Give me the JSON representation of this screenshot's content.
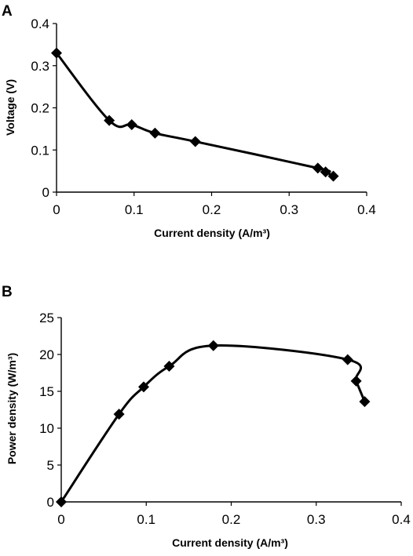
{
  "chart_data": [
    {
      "id": "A",
      "type": "line",
      "panel_label": "A",
      "xlabel": "Current density (A/m³)",
      "ylabel": "Voltage (V)",
      "xlim": [
        0,
        0.4
      ],
      "ylim": [
        0,
        0.4
      ],
      "xticks": [
        "0",
        "0.1",
        "0.2",
        "0.3",
        "0.4"
      ],
      "yticks": [
        "0",
        "0.1",
        "0.2",
        "0.3",
        "0.4"
      ],
      "grid": false,
      "marker": "diamond",
      "series": [
        {
          "x": [
            0,
            0.068,
            0.097,
            0.127,
            0.179,
            0.337,
            0.347,
            0.357
          ],
          "y": [
            0.33,
            0.17,
            0.16,
            0.14,
            0.12,
            0.057,
            0.048,
            0.038
          ]
        }
      ]
    },
    {
      "id": "B",
      "type": "line",
      "panel_label": "B",
      "xlabel": "Current density (A/m³)",
      "ylabel": "Power density (W/m³)",
      "xlim": [
        0,
        0.4
      ],
      "ylim": [
        0,
        25
      ],
      "xticks": [
        "0",
        "0.1",
        "0.2",
        "0.3",
        "0.4"
      ],
      "yticks": [
        "0",
        "5",
        "10",
        "15",
        "20",
        "25"
      ],
      "grid": false,
      "marker": "diamond",
      "series": [
        {
          "x": [
            0,
            0.068,
            0.097,
            0.127,
            0.179,
            0.337,
            0.347,
            0.357
          ],
          "y": [
            0,
            11.9,
            15.6,
            18.4,
            21.2,
            19.3,
            16.4,
            13.6
          ]
        }
      ]
    }
  ]
}
